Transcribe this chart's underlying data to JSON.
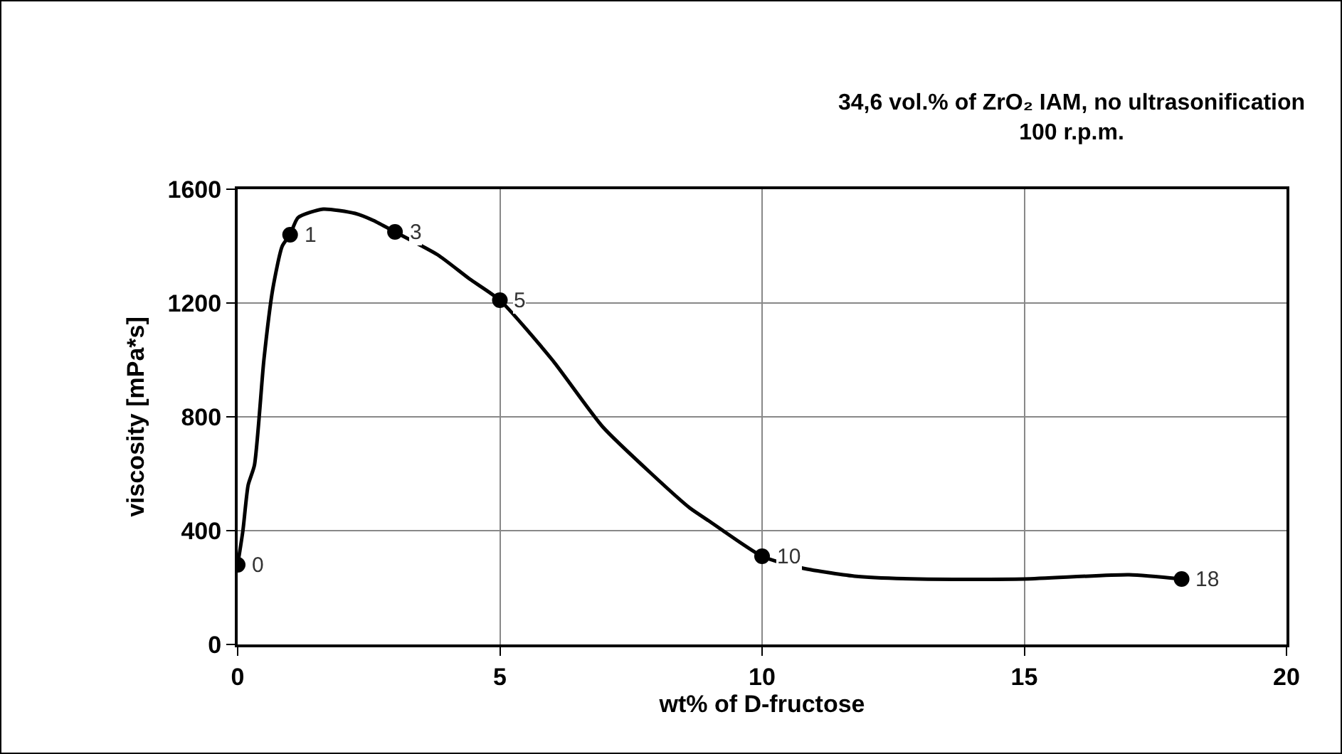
{
  "chart_data": {
    "type": "line",
    "title": "34,6 vol.% of ZrO₂ IAM, no ultrasonification",
    "subtitle": "100 r.p.m.",
    "xlabel": "wt% of D-fructose",
    "ylabel": "viscosity [mPa*s]",
    "xlim": [
      0,
      20
    ],
    "xticks": [
      0,
      5,
      10,
      15,
      20
    ],
    "ylim": [
      0,
      1600
    ],
    "yticks": [
      0,
      400,
      800,
      1200,
      1600
    ],
    "grid": true,
    "series": [
      {
        "color": "#000000",
        "marker": "none",
        "line_style": "solid",
        "x": [
          0,
          0.1,
          0.2,
          0.32,
          0.5,
          0.67,
          0.85,
          1,
          1.15,
          1.63,
          2.24,
          2.59,
          3,
          3.81,
          4.42,
          5,
          6,
          6.96,
          7.92,
          8.62,
          8.98,
          10,
          10.72,
          11.76,
          13,
          15,
          17,
          18
        ],
        "values": [
          280,
          400,
          560,
          630,
          1000,
          1250,
          1400,
          1440,
          1500,
          1530,
          1515,
          1490,
          1450,
          1370,
          1285,
          1210,
          1000,
          765,
          595,
          480,
          435,
          310,
          270,
          240,
          230,
          230,
          245,
          230
        ]
      },
      {
        "type": "scatter",
        "color": "#000000",
        "marker": "circle",
        "x": [
          0,
          1,
          3,
          5,
          10,
          18
        ],
        "values": [
          280,
          1440,
          1450,
          1210,
          310,
          230
        ]
      }
    ],
    "annotations": [
      {
        "text": "0",
        "x": 0,
        "y": 280
      },
      {
        "text": "1",
        "x": 1,
        "y": 1440
      },
      {
        "text": "3",
        "x": 3,
        "y": 1450
      },
      {
        "text": "5",
        "x": 5,
        "y": 1210
      },
      {
        "text": "10",
        "x": 10,
        "y": 310
      },
      {
        "text": "18",
        "x": 18,
        "y": 230
      }
    ]
  }
}
